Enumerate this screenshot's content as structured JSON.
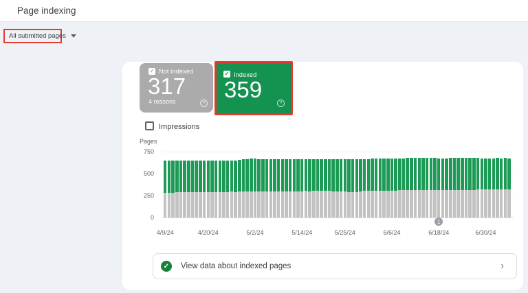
{
  "header": {
    "title": "Page indexing"
  },
  "filter": {
    "label": "All submitted pages"
  },
  "annotation_color": "#e6382c",
  "cards": {
    "not_indexed": {
      "label": "Not indexed",
      "value": "317",
      "sublabel": "4 reasons",
      "color": "#ababab"
    },
    "indexed": {
      "label": "Indexed",
      "value": "359",
      "color": "#149250"
    }
  },
  "impressions": {
    "label": "Impressions",
    "checked": false
  },
  "icons": {
    "check": "✓",
    "question": "?",
    "chevron": "›"
  },
  "chart_data": {
    "type": "bar",
    "stacked": true,
    "ylabel": "Pages",
    "ylim": [
      0,
      750
    ],
    "yticks": [
      0,
      250,
      500,
      750
    ],
    "grid": true,
    "xticks": [
      {
        "label": "4/9/24",
        "day": 0
      },
      {
        "label": "4/20/24",
        "day": 11
      },
      {
        "label": "5/2/24",
        "day": 23
      },
      {
        "label": "5/14/24",
        "day": 35
      },
      {
        "label": "5/25/24",
        "day": 46
      },
      {
        "label": "6/6/24",
        "day": 58
      },
      {
        "label": "6/18/24",
        "day": 70
      },
      {
        "label": "6/30/24",
        "day": 82
      }
    ],
    "annotation_marker": {
      "label": "1",
      "day": 70
    },
    "series": [
      {
        "name": "Not indexed",
        "color": "#c2c2c2",
        "values": [
          283,
          285,
          285,
          286,
          286,
          287,
          290,
          291,
          290,
          291,
          292,
          291,
          292,
          293,
          292,
          293,
          293,
          294,
          293,
          294,
          295,
          296,
          295,
          296,
          297,
          296,
          297,
          298,
          297,
          298,
          299,
          298,
          299,
          300,
          299,
          300,
          301,
          300,
          301,
          302,
          301,
          302,
          303,
          298,
          297,
          298,
          299,
          291,
          290,
          292,
          300,
          302,
          303,
          304,
          305,
          306,
          307,
          307,
          308,
          308,
          309,
          309,
          310,
          310,
          310,
          311,
          311,
          312,
          312,
          312,
          313,
          313,
          314,
          314,
          315,
          315,
          315,
          316,
          316,
          316,
          317,
          317,
          317,
          317,
          317,
          317,
          317,
          317,
          317
        ]
      },
      {
        "name": "Indexed",
        "color": "#1d9a56",
        "values": [
          362,
          360,
          361,
          360,
          361,
          360,
          358,
          357,
          359,
          358,
          358,
          359,
          358,
          358,
          359,
          358,
          359,
          358,
          359,
          359,
          373,
          372,
          374,
          373,
          371,
          372,
          370,
          368,
          369,
          367,
          366,
          367,
          367,
          366,
          366,
          365,
          365,
          366,
          366,
          365,
          365,
          364,
          362,
          366,
          366,
          365,
          363,
          371,
          373,
          372,
          366,
          365,
          365,
          365,
          365,
          365,
          365,
          366,
          366,
          366,
          366,
          366,
          366,
          366,
          367,
          366,
          367,
          366,
          367,
          367,
          362,
          362,
          361,
          362,
          361,
          362,
          361,
          361,
          360,
          361,
          360,
          359,
          359,
          359,
          359,
          360,
          359,
          360,
          359
        ]
      }
    ]
  },
  "footer_link": {
    "label": "View data about indexed pages"
  }
}
